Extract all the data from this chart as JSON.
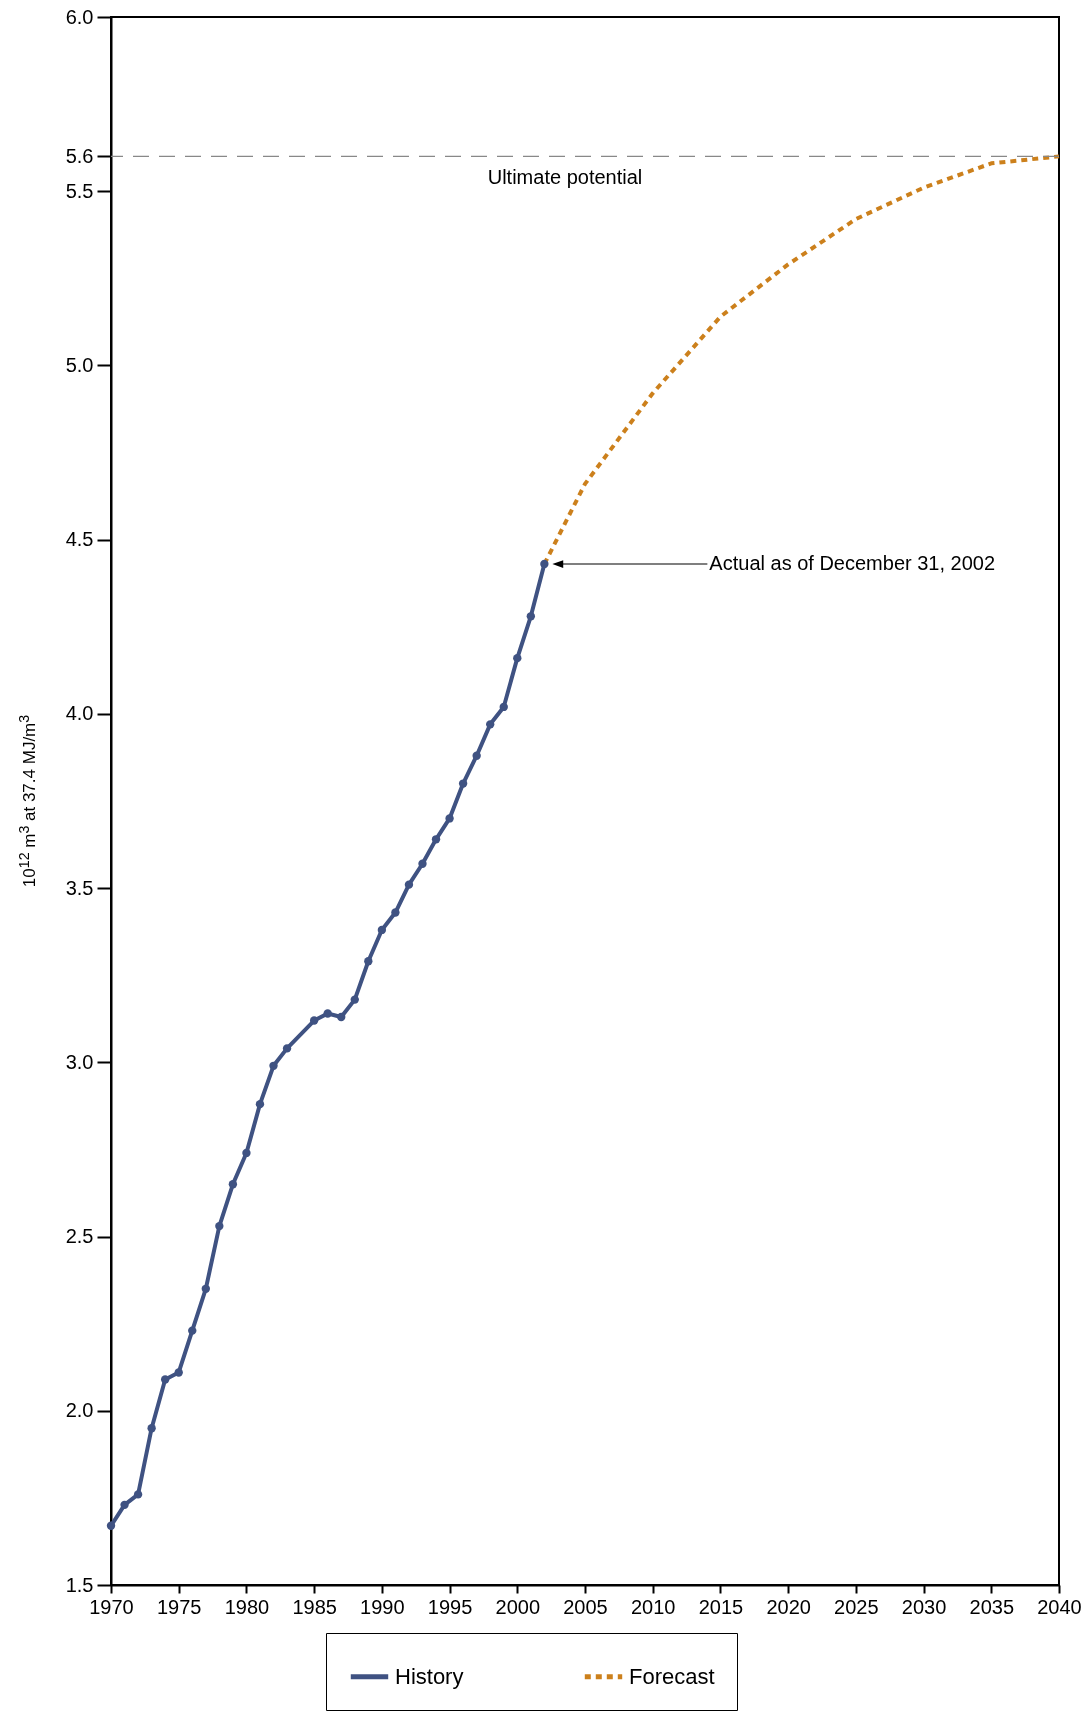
{
  "chart_data": {
    "type": "line",
    "ylabel": "10$^{12}$ m$^{3}$ at 37.4 MJ/m$^{3}$",
    "xlim": [
      1970,
      2040
    ],
    "xticks": [
      1970,
      1975,
      1980,
      1985,
      1990,
      1995,
      2000,
      2005,
      2010,
      2015,
      2020,
      2025,
      2030,
      2035,
      2040
    ],
    "ylim": [
      1.5,
      6.0
    ],
    "yticks": [
      {
        "value": 1.5,
        "label": "1.5"
      },
      {
        "value": 2.0,
        "label": "2.0"
      },
      {
        "value": 2.5,
        "label": "2.5"
      },
      {
        "value": 3.0,
        "label": "3.0"
      },
      {
        "value": 3.5,
        "label": "3.5"
      },
      {
        "value": 4.0,
        "label": "4.0"
      },
      {
        "value": 4.5,
        "label": "4.5"
      },
      {
        "value": 5.0,
        "label": "5.0"
      },
      {
        "value": 5.5,
        "label": "5.5"
      },
      {
        "value": 5.6,
        "label": "5.6"
      },
      {
        "value": 6.0,
        "label": "6.0"
      }
    ],
    "series": [
      {
        "name": "History",
        "color": "#3f5282",
        "marker": "circle",
        "line_style": "solid",
        "x": [
          1970,
          1971,
          1972,
          1973,
          1974,
          1975,
          1976,
          1977,
          1978,
          1979,
          1980,
          1981,
          1982,
          1983,
          1985,
          1986,
          1987,
          1988,
          1989,
          1990,
          1991,
          1992,
          1993,
          1994,
          1995,
          1996,
          1997,
          1998,
          1999,
          2000,
          2001,
          2002
        ],
        "values": [
          1.67,
          1.73,
          1.76,
          1.95,
          2.09,
          2.11,
          2.23,
          2.35,
          2.53,
          2.65,
          2.74,
          2.88,
          2.99,
          3.04,
          3.12,
          3.14,
          3.13,
          3.18,
          3.29,
          3.38,
          3.43,
          3.51,
          3.57,
          3.64,
          3.7,
          3.8,
          3.88,
          3.97,
          4.02,
          4.16,
          4.28,
          4.43
        ]
      },
      {
        "name": "Forecast",
        "color": "#cc801c",
        "marker": "none",
        "line_style": "dotted",
        "x": [
          2002,
          2005,
          2010,
          2015,
          2020,
          2025,
          2030,
          2035,
          2040
        ],
        "values": [
          4.43,
          4.66,
          4.92,
          5.14,
          5.29,
          5.42,
          5.51,
          5.58,
          5.6
        ]
      }
    ],
    "ref_lines": [
      {
        "axis": "y",
        "value": 5.6,
        "label": "Ultimate potential",
        "color": "#888888",
        "line_style": "dashed"
      }
    ],
    "annotations": [
      "Actual as of December 31, 2002"
    ],
    "grid": false,
    "legend": "bottom"
  }
}
